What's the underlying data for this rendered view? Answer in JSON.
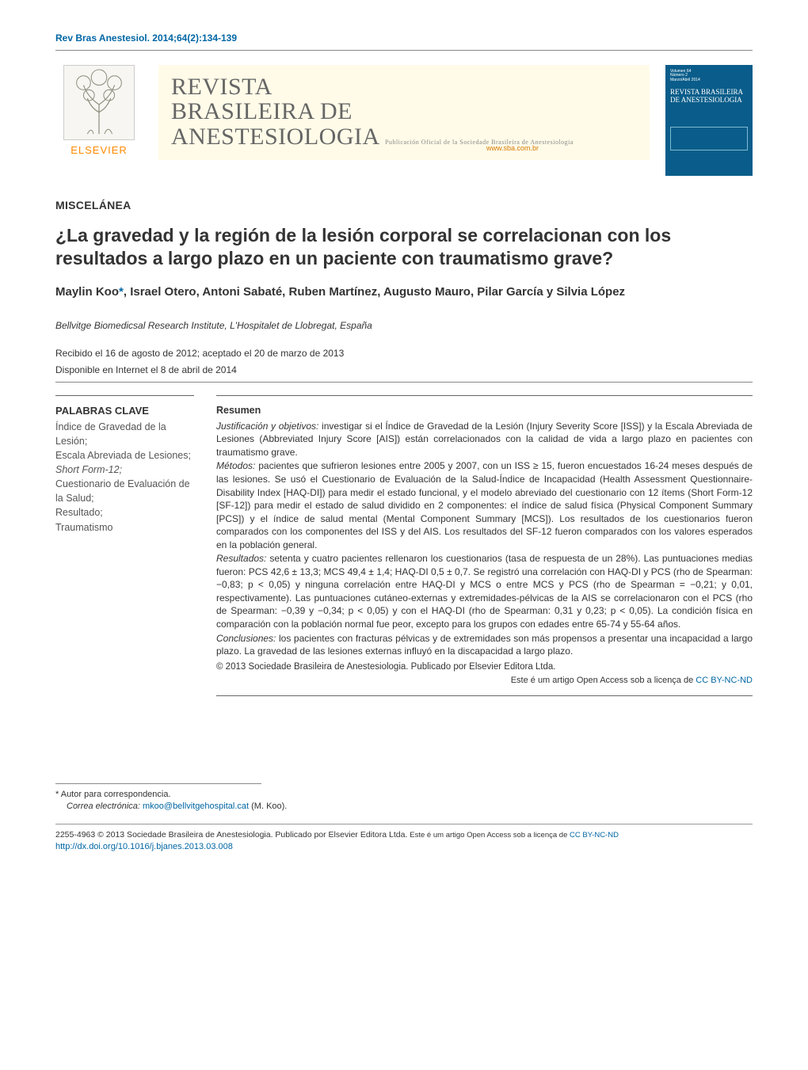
{
  "running_head": "Rev Bras Anestesiol. 2014;64(2):134-139",
  "publisher": {
    "name": "ELSEVIER"
  },
  "journal": {
    "name_line1": "REVISTA",
    "name_line2": "BRASILEIRA DE",
    "name_line3": "ANESTESIOLOGIA",
    "subtitle": "Publicación Oficial de la Sociedade Brasileira de Anestesiologia",
    "url": "www.sba.com.br",
    "cover_title": "REVISTA BRASILEIRA DE ANESTESIOLOGIA"
  },
  "section_label": "MISCELÁNEA",
  "title": "¿La gravedad y la región de la lesión corporal se correlacionan con los resultados a largo plazo en un paciente con traumatismo grave?",
  "authors_html": "Maylin Koo<span class='corr'>*</span>, Israel Otero, Antoni Sabaté, Ruben Martínez, Augusto Mauro, Pilar García y Silvia López",
  "affiliation": "Bellvitge Biomedicsal Research Institute, L'Hospitalet de Llobregat, España",
  "dates_line1": "Recibido el 16 de agosto de 2012; aceptado el 20 de marzo de 2013",
  "dates_line2": "Disponible en Internet el 8 de abril de 2014",
  "keywords": {
    "head": "PALABRAS CLAVE",
    "items": [
      {
        "t": "Índice de Gravedad de la Lesión;",
        "it": false
      },
      {
        "t": "Escala Abreviada de Lesiones;",
        "it": false
      },
      {
        "t": "Short Form-12;",
        "it": true
      },
      {
        "t": "Cuestionario de Evaluación de la Salud;",
        "it": false
      },
      {
        "t": "Resultado;",
        "it": false
      },
      {
        "t": "Traumatismo",
        "it": false
      }
    ]
  },
  "abstract": {
    "head": "Resumen",
    "paragraphs": [
      {
        "lead": "Justificación y objetivos:",
        "body": " investigar si el Índice de Gravedad de la Lesión (Injury Severity Score [ISS]) y la Escala Abreviada de Lesiones (Abbreviated Injury Score [AIS]) están correlacionados con la calidad de vida a largo plazo en pacientes con traumatismo grave."
      },
      {
        "lead": "Métodos:",
        "body": " pacientes que sufrieron lesiones entre 2005 y 2007, con un ISS ≥ 15, fueron encuestados 16-24 meses después de las lesiones. Se usó el Cuestionario de Evaluación de la Salud-Índice de Incapacidad (Health Assessment Questionnaire-Disability Index [HAQ-DI]) para medir el estado funcional, y el modelo abreviado del cuestionario con 12 ítems (Short Form-12 [SF-12]) para medir el estado de salud dividido en 2 componentes: el índice de salud física (Physical Component Summary [PCS]) y el índice de salud mental (Mental Component Summary [MCS]). Los resultados de los cuestionarios fueron comparados con los componentes del ISS y del AIS. Los resultados del SF-12 fueron comparados con los valores esperados en la población general."
      },
      {
        "lead": "Resultados:",
        "body": " setenta y cuatro pacientes rellenaron los cuestionarios (tasa de respuesta de un 28%). Las puntuaciones medias fueron: PCS 42,6 ± 13,3; MCS 49,4 ± 1,4; HAQ-DI 0,5 ± 0,7. Se registró una correlación con HAQ-DI y PCS (rho de Spearman: −0,83; p < 0,05) y ninguna correlación entre HAQ-DI y MCS o entre MCS y PCS (rho de Spearman = −0,21; y 0,01, respectivamente). Las puntuaciones cutáneo-externas y extremidades-pélvicas de la AIS se correlacionaron con el PCS (rho de Spearman: −0,39 y −0,34; p < 0,05) y con el HAQ-DI (rho de Spearman: 0,31 y 0,23; p < 0,05). La condición física en comparación con la población normal fue peor, excepto para los grupos con edades entre 65-74 y 55-64 años."
      },
      {
        "lead": "Conclusiones:",
        "body": " los pacientes con fracturas pélvicas y de extremidades son más propensos a presentar una incapacidad a largo plazo. La gravedad de las lesiones externas influyó en la discapacidad a largo plazo."
      }
    ],
    "copyright": "© 2013 Sociedade Brasileira de Anestesiologia. Publicado por Elsevier Editora Ltda.",
    "oa_text": "Este é um artigo Open Access sob a licença de ",
    "oa_link": "CC BY-NC-ND"
  },
  "footer": {
    "corr_label": "* Autor para correspondencia.",
    "email_label": "Correa electrónica: ",
    "email": "mkoo@bellvitgehospital.cat",
    "email_after": " (M. Koo)."
  },
  "issn_line": {
    "issn": "2255-4963 © 2013 Sociedade Brasileira de Anestesiologia. Publicado por Elsevier Editora Ltda. ",
    "oa_small": "Este é um artigo Open Access sob a licença de ",
    "oa_link": "CC BY-NC-ND",
    "doi": "http://dx.doi.org/10.1016/j.bjanes.2013.03.008"
  },
  "colors": {
    "link": "#0066a4",
    "elsevier_orange": "#ff8a00",
    "journal_bg": "#fffbe8",
    "journal_name": "#666666",
    "cover_bg": "#0a5d8a"
  }
}
